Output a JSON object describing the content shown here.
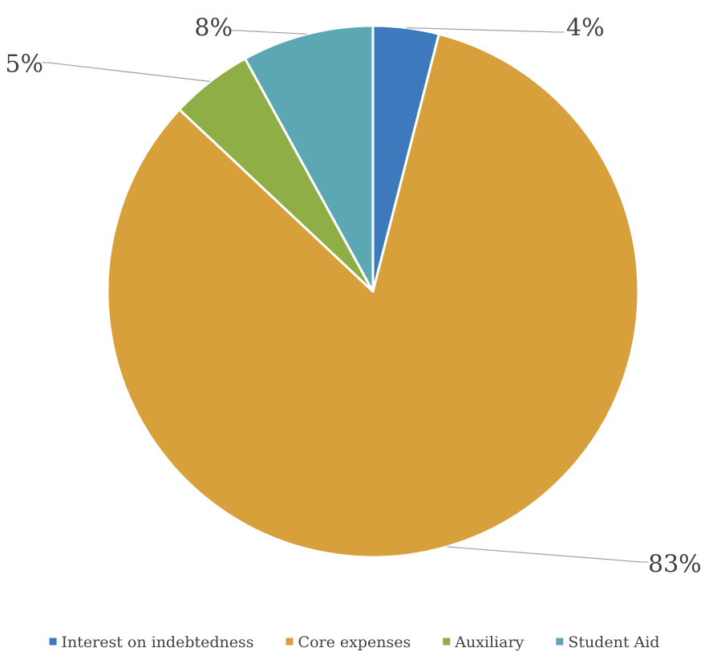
{
  "chart_data": {
    "type": "pie",
    "title": "",
    "slices": [
      {
        "label": "Interest on indebtedness",
        "value": 4,
        "value_label": "4%",
        "color": "#3c7abd"
      },
      {
        "label": "Core expenses",
        "value": 83,
        "value_label": "83%",
        "color": "#d8a03b"
      },
      {
        "label": "Auxiliary",
        "value": 5,
        "value_label": "5%",
        "color": "#8fae45"
      },
      {
        "label": "Student Aid",
        "value": 8,
        "value_label": "8%",
        "color": "#5ba8b4"
      }
    ],
    "start_angle_deg": 0,
    "direction": "clockwise",
    "slice_border_color": "#ffffff",
    "leader_line_color": "#a6a6a6",
    "legend_position": "bottom"
  }
}
